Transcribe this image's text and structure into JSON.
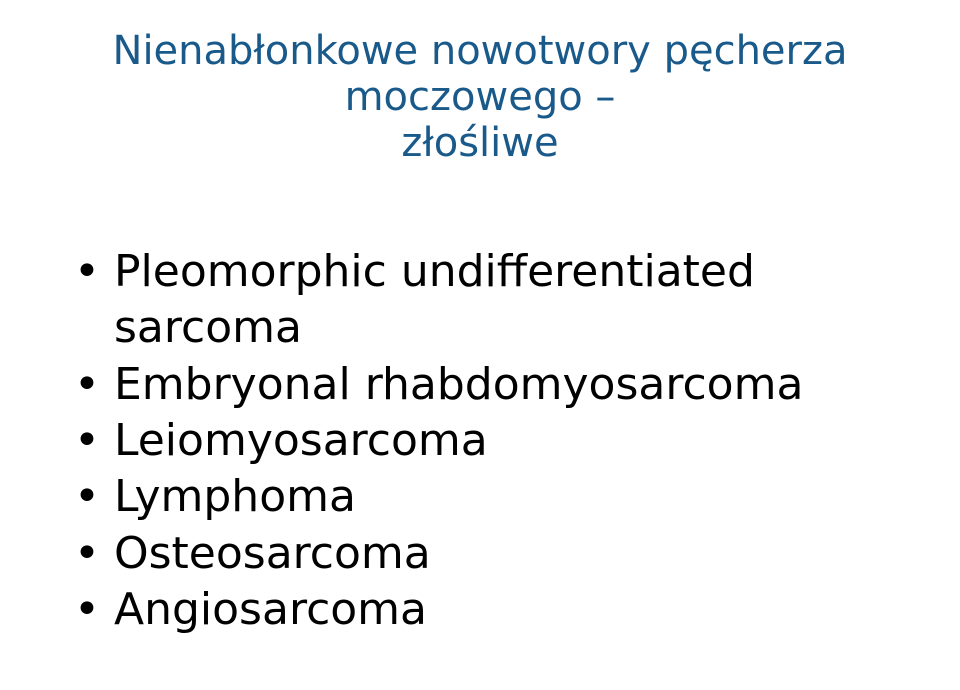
{
  "title": {
    "line1": "Nienabłonkowe nowotwory pęcherza moczowego –",
    "line2": "złośliwe",
    "color": "#1a5a8a",
    "fontsize": 40,
    "align": "center"
  },
  "bullets": {
    "items": [
      "Pleomorphic undifferentiated sarcoma",
      "Embryonal rhabdomyosarcoma",
      "Leiomyosarcoma",
      "Lymphoma",
      "Osteosarcoma",
      "Angiosarcoma"
    ],
    "color": "#000000",
    "fontsize": 44,
    "marker": "•"
  },
  "background_color": "#ffffff"
}
